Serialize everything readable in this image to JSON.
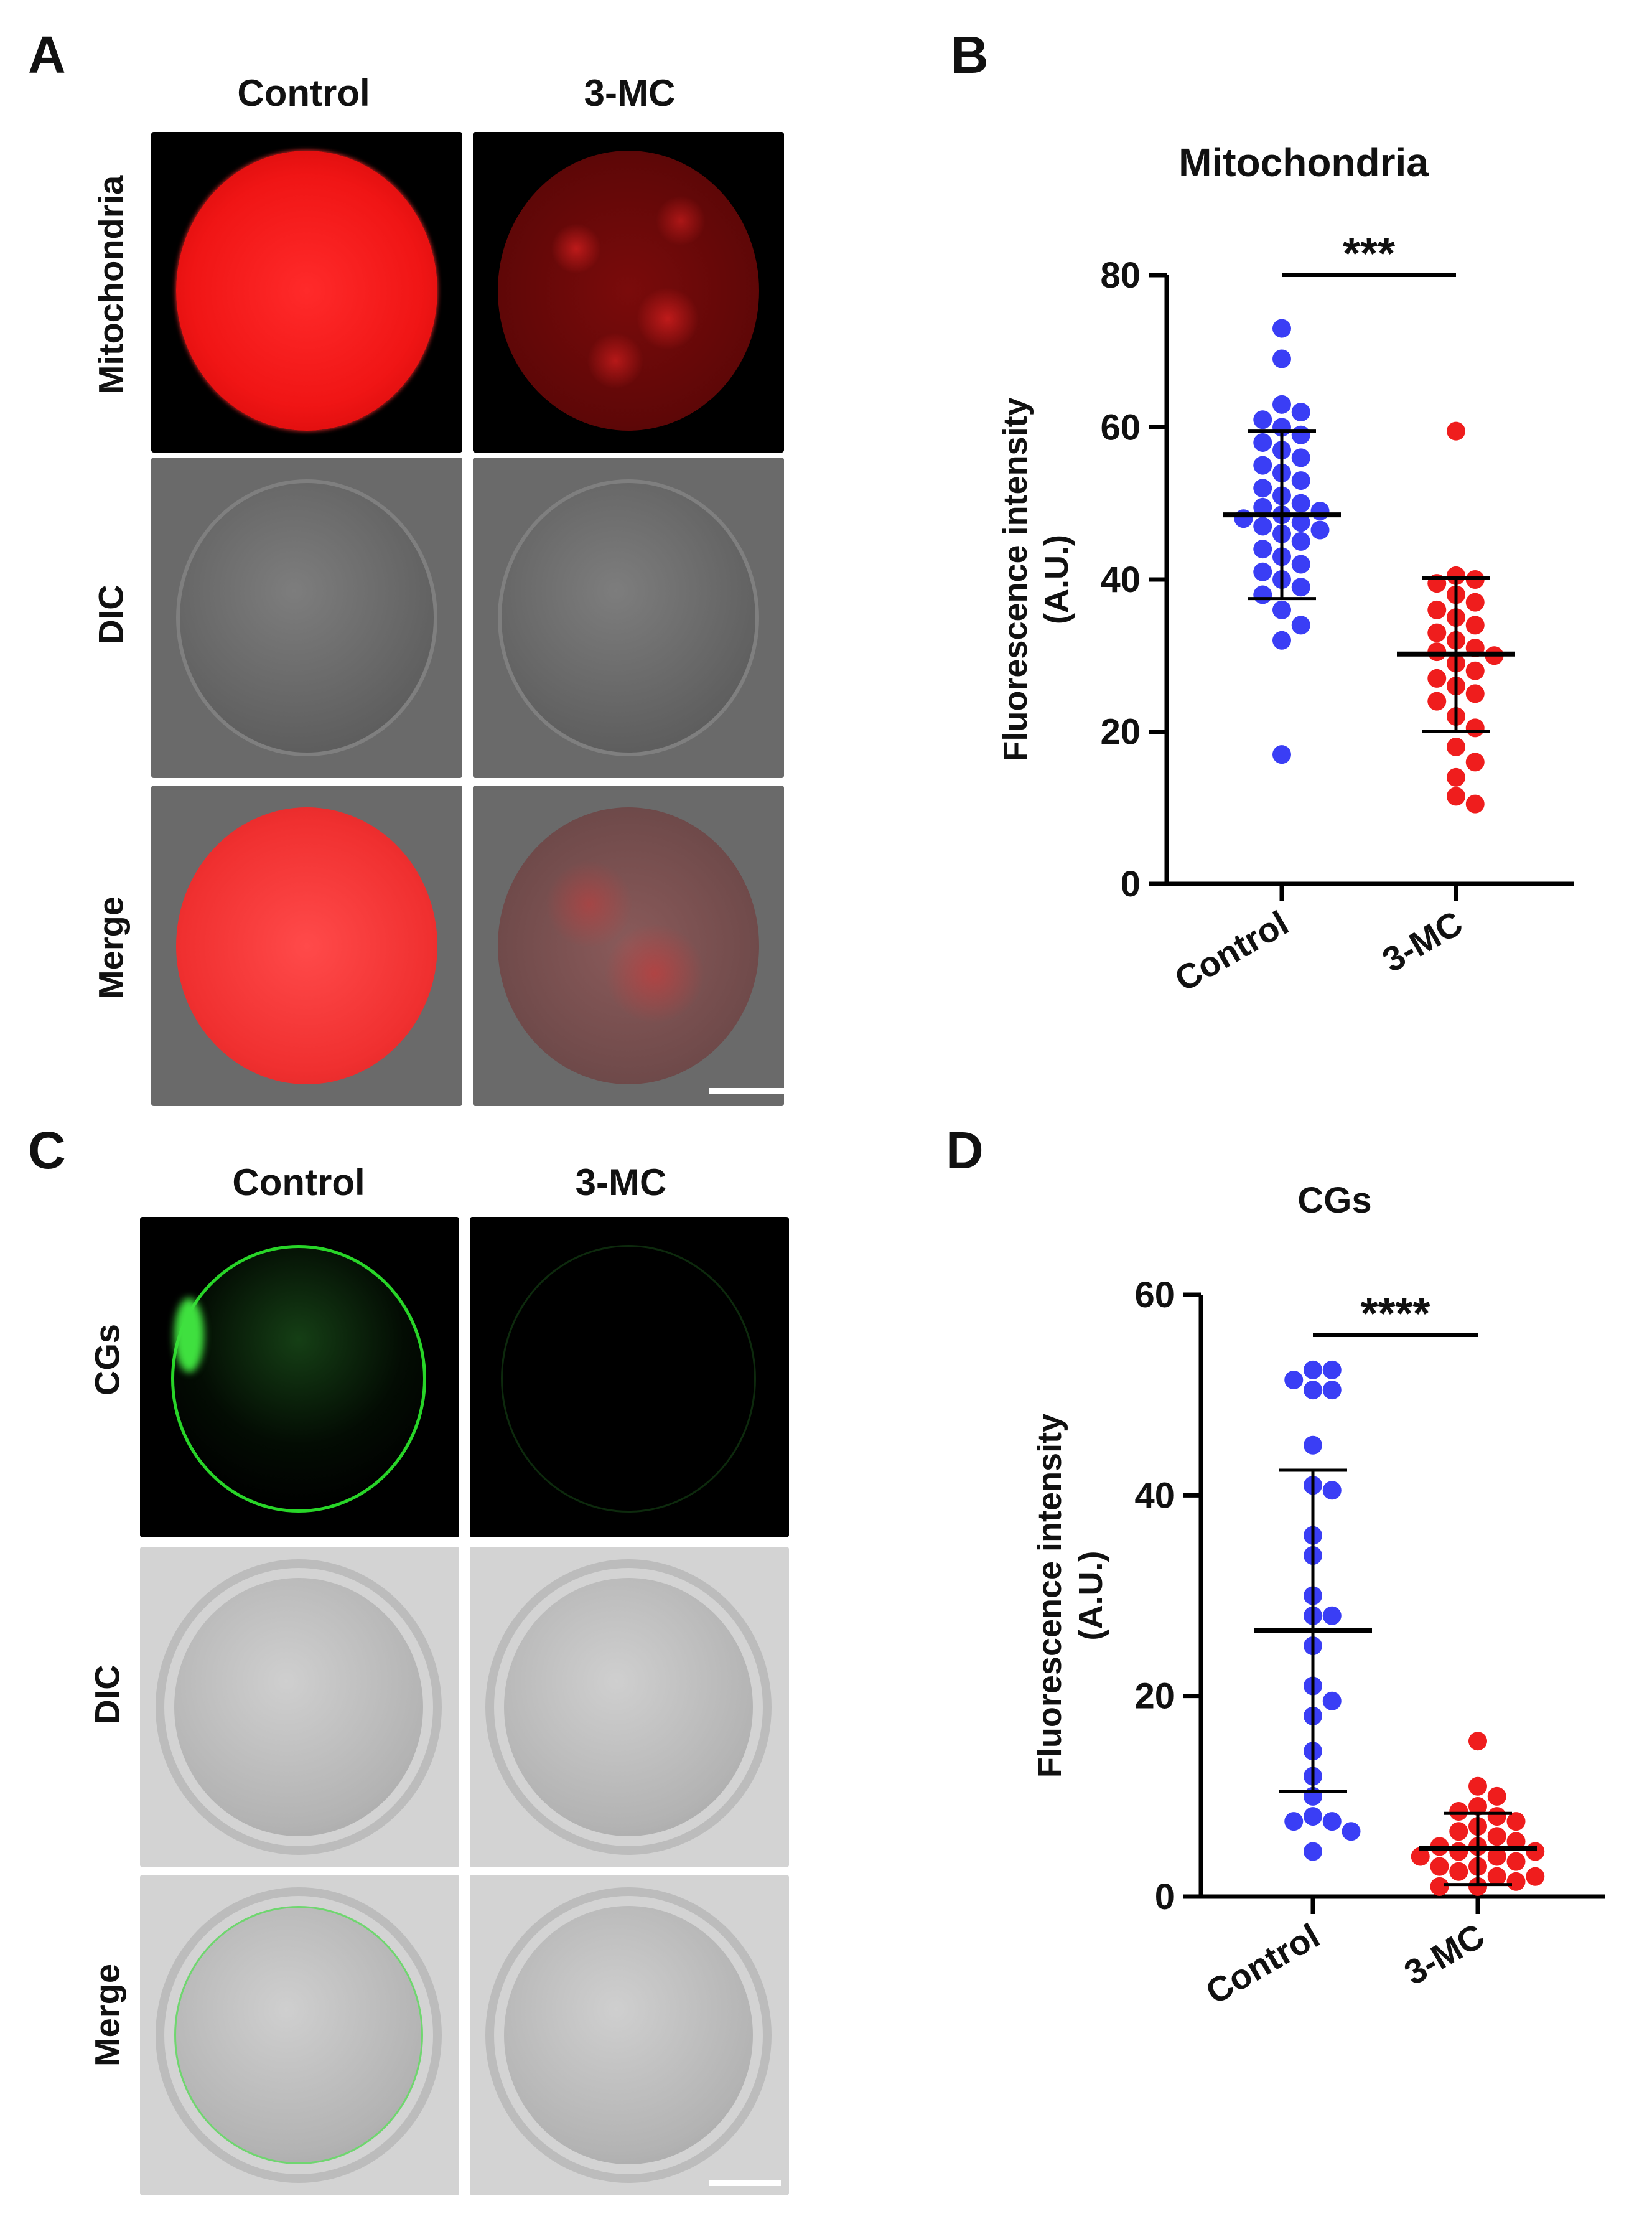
{
  "panels": {
    "A": {
      "letter": "A",
      "columns": [
        "Control",
        "3-MC"
      ],
      "rows": [
        "Mitochondria",
        "DIC",
        "Merge"
      ]
    },
    "B": {
      "letter": "B"
    },
    "C": {
      "letter": "C",
      "columns": [
        "Control",
        "3-MC"
      ],
      "rows": [
        "CGs",
        "DIC",
        "Merge"
      ]
    },
    "D": {
      "letter": "D"
    }
  },
  "colors": {
    "control_dots": "#3a3ef5",
    "treatment_dots": "#ef1d1d",
    "mito_red": "#ff1a1a",
    "cg_green": "#2adb2a"
  },
  "chart_data": [
    {
      "type": "scatter",
      "panel": "B",
      "title": "Mitochondria",
      "ylabel": "Fluorescence intensity (A.U.)",
      "xlabel": "",
      "categories": [
        "Control",
        "3-MC"
      ],
      "ylim": [
        0,
        80
      ],
      "yticks": [
        0,
        20,
        40,
        60,
        80
      ],
      "significance": "***",
      "series": [
        {
          "category": "Control",
          "mean": 48.5,
          "sd_upper": 59.5,
          "sd_lower": 37.5,
          "values": [
            73,
            69,
            63,
            62,
            61,
            60,
            59,
            58,
            57,
            56,
            55,
            54,
            53,
            52,
            51,
            50,
            49.5,
            49,
            48.5,
            48,
            47.5,
            47,
            46.5,
            46,
            45,
            44,
            43,
            42,
            41,
            40,
            39,
            38,
            36,
            34,
            32,
            17
          ]
        },
        {
          "category": "3-MC",
          "mean": 30.2,
          "sd_upper": 40.2,
          "sd_lower": 20,
          "values": [
            59.5,
            40.5,
            40,
            39.5,
            38,
            37,
            36,
            35,
            34,
            33,
            32,
            31,
            30.5,
            30,
            29,
            28,
            27,
            26,
            25,
            24,
            22,
            20.5,
            18,
            16,
            14,
            11.5,
            10.5
          ]
        }
      ]
    },
    {
      "type": "scatter",
      "panel": "D",
      "title": "CGs",
      "ylabel": "Fluorescence intensity (A.U.)",
      "xlabel": "",
      "categories": [
        "Control",
        "3-MC"
      ],
      "ylim": [
        0,
        60
      ],
      "yticks": [
        0,
        20,
        40,
        60
      ],
      "significance": "****",
      "series": [
        {
          "category": "Control",
          "mean": 26.5,
          "sd_upper": 42.5,
          "sd_lower": 10.5,
          "values": [
            52.5,
            52.5,
            51.5,
            50.5,
            50.5,
            45,
            41,
            40.5,
            36,
            34,
            30,
            28,
            28,
            25,
            21,
            19.5,
            18,
            14.5,
            12,
            10,
            8,
            7.5,
            7.5,
            6.5,
            4.5
          ]
        },
        {
          "category": "3-MC",
          "mean": 4.8,
          "sd_upper": 8.3,
          "sd_lower": 1.2,
          "values": [
            15.5,
            11,
            10,
            9,
            8.5,
            8,
            7.5,
            7,
            6.5,
            6,
            5.5,
            5,
            5,
            4.5,
            4.5,
            4,
            4,
            3.5,
            3,
            3,
            2.5,
            2,
            2,
            1.5,
            1,
            1
          ]
        }
      ]
    }
  ]
}
